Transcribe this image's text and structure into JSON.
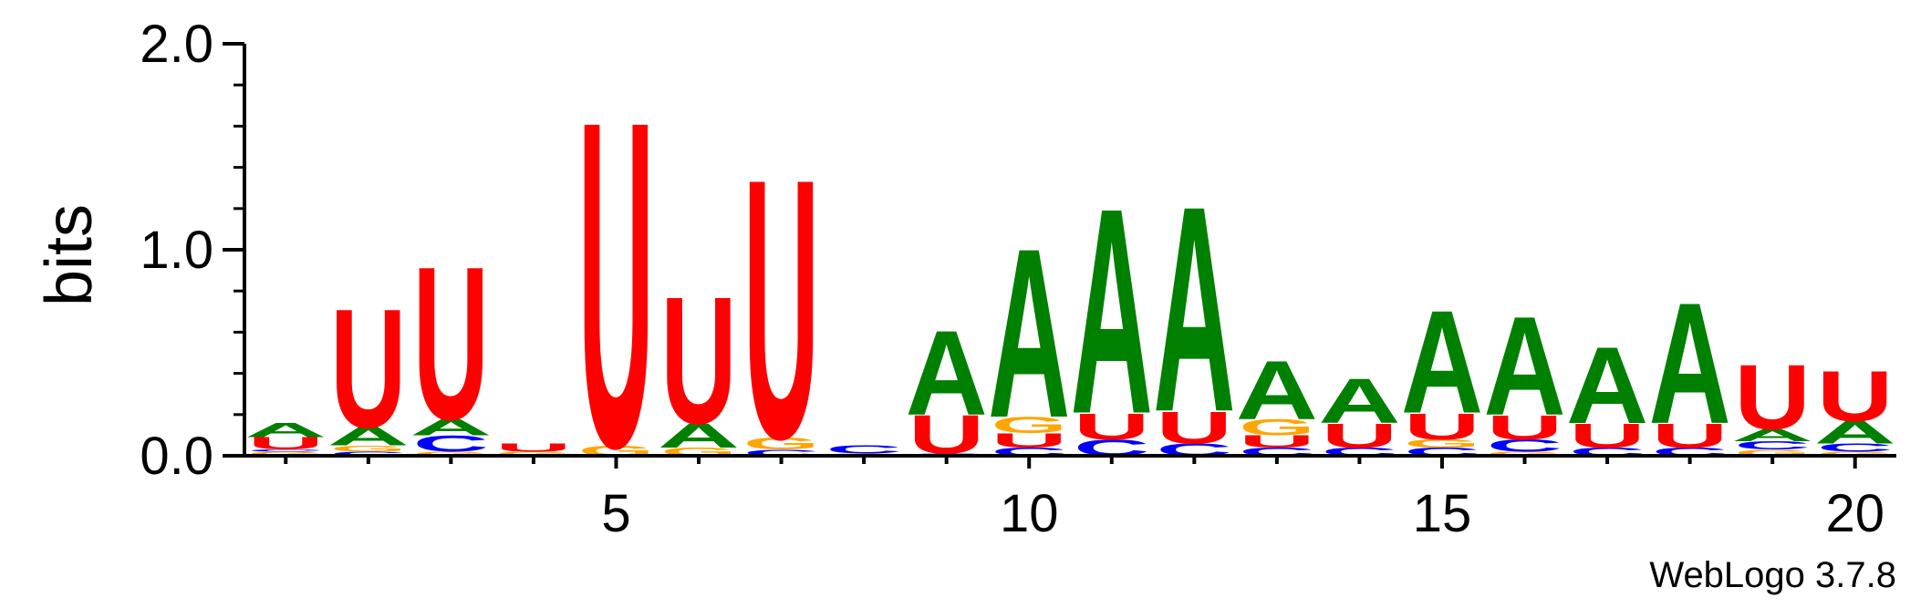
{
  "chart_data": {
    "type": "sequence-logo",
    "ylabel": "bits",
    "ylim": [
      0,
      2
    ],
    "y_ticks": [
      "0.0",
      "1.0",
      "2.0"
    ],
    "x_tick_labels": [
      "5",
      "10",
      "15",
      "20"
    ],
    "positions": [
      1,
      2,
      3,
      4,
      5,
      6,
      7,
      8,
      9,
      10,
      11,
      12,
      13,
      14,
      15,
      16,
      17,
      18,
      19,
      20
    ],
    "colors": {
      "A": "#008000",
      "U": "#ff0000",
      "C": "#0000ff",
      "G": "#ffa500"
    },
    "stacks": [
      [
        {
          "l": "G",
          "h": 0.02
        },
        {
          "l": "C",
          "h": 0.01
        },
        {
          "l": "U",
          "h": 0.06
        },
        {
          "l": "A",
          "h": 0.07
        }
      ],
      [
        {
          "l": "C",
          "h": 0.02
        },
        {
          "l": "G",
          "h": 0.03
        },
        {
          "l": "A",
          "h": 0.09
        },
        {
          "l": "U",
          "h": 0.59
        }
      ],
      [
        {
          "l": "G",
          "h": 0.02
        },
        {
          "l": "C",
          "h": 0.08
        },
        {
          "l": "A",
          "h": 0.08
        },
        {
          "l": "U",
          "h": 0.76
        }
      ],
      [
        {
          "l": "G",
          "h": 0.02
        },
        {
          "l": "U",
          "h": 0.04
        }
      ],
      [
        {
          "l": "G",
          "h": 0.05
        },
        {
          "l": "U",
          "h": 1.62
        }
      ],
      [
        {
          "l": "G",
          "h": 0.04
        },
        {
          "l": "A",
          "h": 0.12
        },
        {
          "l": "U",
          "h": 0.63
        }
      ],
      [
        {
          "l": "C",
          "h": 0.03
        },
        {
          "l": "G",
          "h": 0.06
        },
        {
          "l": "U",
          "h": 1.29
        }
      ],
      [
        {
          "l": "G",
          "h": 0.01
        },
        {
          "l": "C",
          "h": 0.04
        }
      ],
      [
        {
          "l": "C",
          "h": 0.01
        },
        {
          "l": "U",
          "h": 0.19
        },
        {
          "l": "A",
          "h": 0.42
        }
      ],
      [
        {
          "l": "C",
          "h": 0.04
        },
        {
          "l": "U",
          "h": 0.07
        },
        {
          "l": "G",
          "h": 0.08
        },
        {
          "l": "A",
          "h": 0.84
        }
      ],
      [
        {
          "l": "C",
          "h": 0.08
        },
        {
          "l": "U",
          "h": 0.13
        },
        {
          "l": "A",
          "h": 1.02
        }
      ],
      [
        {
          "l": "C",
          "h": 0.06
        },
        {
          "l": "U",
          "h": 0.16
        },
        {
          "l": "A",
          "h": 1.02
        }
      ],
      [
        {
          "l": "C",
          "h": 0.04
        },
        {
          "l": "U",
          "h": 0.06
        },
        {
          "l": "G",
          "h": 0.08
        },
        {
          "l": "A",
          "h": 0.29
        }
      ],
      [
        {
          "l": "C",
          "h": 0.04
        },
        {
          "l": "U",
          "h": 0.12
        },
        {
          "l": "A",
          "h": 0.22
        }
      ],
      [
        {
          "l": "C",
          "h": 0.04
        },
        {
          "l": "G",
          "h": 0.04
        },
        {
          "l": "U",
          "h": 0.13
        },
        {
          "l": "A",
          "h": 0.51
        }
      ],
      [
        {
          "l": "G",
          "h": 0.02
        },
        {
          "l": "C",
          "h": 0.06
        },
        {
          "l": "U",
          "h": 0.12
        },
        {
          "l": "A",
          "h": 0.49
        }
      ],
      [
        {
          "l": "C",
          "h": 0.04
        },
        {
          "l": "U",
          "h": 0.12
        },
        {
          "l": "A",
          "h": 0.38
        }
      ],
      [
        {
          "l": "C",
          "h": 0.04
        },
        {
          "l": "U",
          "h": 0.12
        },
        {
          "l": "A",
          "h": 0.6
        }
      ],
      [
        {
          "l": "G",
          "h": 0.03
        },
        {
          "l": "C",
          "h": 0.04
        },
        {
          "l": "A",
          "h": 0.06
        },
        {
          "l": "U",
          "h": 0.32
        }
      ],
      [
        {
          "l": "G",
          "h": 0.02
        },
        {
          "l": "C",
          "h": 0.04
        },
        {
          "l": "A",
          "h": 0.11
        },
        {
          "l": "U",
          "h": 0.25
        }
      ]
    ],
    "grid": false
  },
  "credit": "WebLogo 3.7.8"
}
